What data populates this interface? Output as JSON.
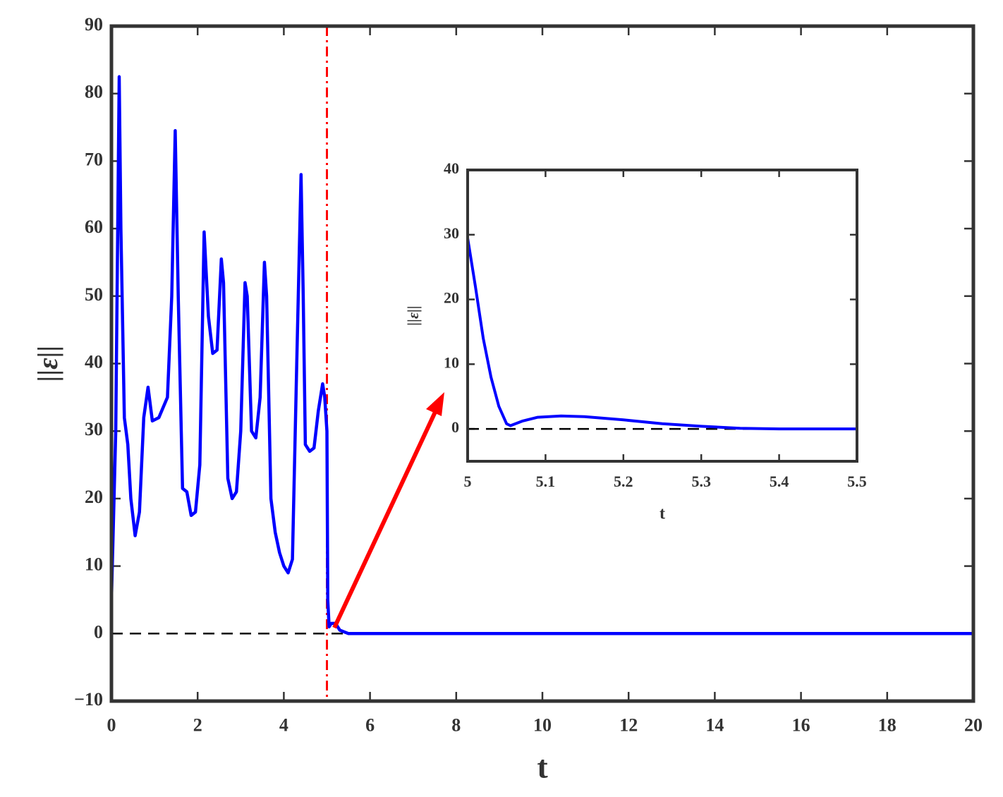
{
  "chart_data": [
    {
      "type": "line",
      "x": [
        0,
        0.1,
        0.18,
        0.22,
        0.3,
        0.38,
        0.45,
        0.55,
        0.65,
        0.75,
        0.85,
        0.95,
        1.1,
        1.3,
        1.4,
        1.48,
        1.55,
        1.65,
        1.75,
        1.85,
        1.95,
        2.05,
        2.15,
        2.25,
        2.35,
        2.45,
        2.55,
        2.6,
        2.7,
        2.8,
        2.9,
        3.0,
        3.1,
        3.15,
        3.25,
        3.35,
        3.45,
        3.55,
        3.6,
        3.7,
        3.8,
        3.9,
        4.0,
        4.1,
        4.2,
        4.3,
        4.4,
        4.45,
        4.5,
        4.6,
        4.7,
        4.8,
        4.9,
        4.95,
        5.0,
        5.02,
        5.05,
        5.1,
        5.2,
        5.3,
        5.5,
        10,
        20
      ],
      "values": [
        5,
        30,
        82.5,
        60,
        32,
        28,
        20,
        14.5,
        18,
        32,
        36.5,
        31.5,
        32,
        35,
        50,
        74.5,
        50,
        21.5,
        21,
        17.5,
        18,
        25,
        59.5,
        47,
        41.5,
        42,
        55.5,
        52,
        23,
        20,
        21,
        30,
        52,
        50,
        30,
        29,
        35,
        55,
        50,
        20,
        15,
        12,
        10,
        9,
        11,
        40,
        68,
        50,
        28,
        27,
        27.5,
        33,
        37,
        35,
        30,
        5,
        1,
        1.5,
        1.5,
        0.5,
        0,
        0,
        0
      ],
      "color": "#0000ff",
      "xlabel": "t",
      "ylabel": "||ε||",
      "xlim": [
        0,
        20
      ],
      "ylim": [
        -10,
        90
      ],
      "xticks": [
        0,
        2,
        4,
        6,
        8,
        10,
        12,
        14,
        16,
        18,
        20
      ],
      "yticks": [
        {
          "value": -10,
          "label": "−10"
        },
        0,
        10,
        20,
        30,
        40,
        50,
        60,
        70,
        80,
        90
      ],
      "hline": {
        "y": 0,
        "color": "#000000",
        "style": "dashed"
      },
      "vline": {
        "x": 5,
        "color": "#ff0000",
        "style": "dashdot"
      }
    },
    {
      "type": "line",
      "x": [
        5,
        5.01,
        5.02,
        5.03,
        5.04,
        5.05,
        5.055,
        5.07,
        5.09,
        5.12,
        5.15,
        5.2,
        5.25,
        5.3,
        5.35,
        5.4,
        5.5
      ],
      "values": [
        29.5,
        22,
        14,
        8,
        3.5,
        0.8,
        0.5,
        1.2,
        1.8,
        2,
        1.9,
        1.4,
        0.8,
        0.4,
        0.1,
        0,
        0
      ],
      "color": "#0000ff",
      "xlabel": "t",
      "ylabel": "||ε||",
      "xlim": [
        5,
        5.5
      ],
      "ylim": [
        -5,
        40
      ],
      "xticks": [
        5,
        5.1,
        5.2,
        5.3,
        5.4,
        5.5
      ],
      "yticks": [
        0,
        10,
        20,
        30,
        40
      ],
      "hline": {
        "y": 0,
        "color": "#000000",
        "style": "dashed"
      }
    }
  ]
}
